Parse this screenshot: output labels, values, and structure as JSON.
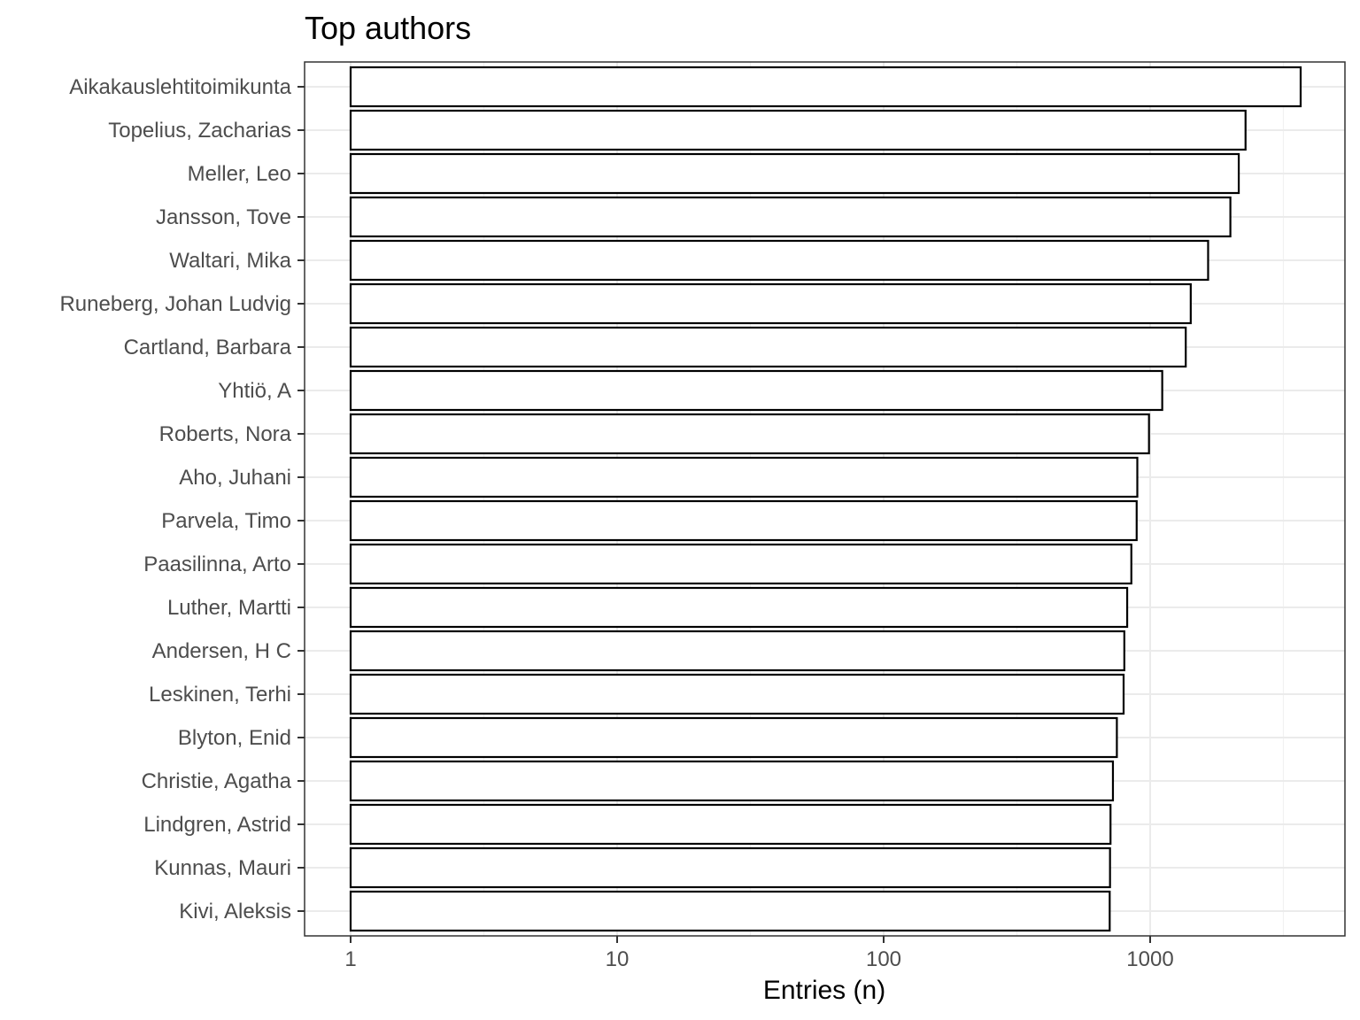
{
  "chart_data": {
    "type": "bar",
    "orientation": "horizontal",
    "title": "Top authors",
    "xlabel": "Entries (n)",
    "ylabel": "",
    "x_scale": "log10",
    "xlim": [
      0.75,
      6000
    ],
    "x_ticks": [
      1,
      10,
      100,
      1000
    ],
    "x_tick_labels": [
      "1",
      "10",
      "100",
      "1000"
    ],
    "grid": true,
    "bar_fill": "#ffffff",
    "bar_stroke": "#000000",
    "categories": [
      "Aikakauslehtitoimikunta",
      "Topelius, Zacharias",
      "Meller, Leo",
      "Jansson, Tove",
      "Waltari, Mika",
      "Runeberg, Johan Ludvig",
      "Cartland, Barbara",
      "Yhtiö, A",
      "Roberts, Nora",
      "Aho, Juhani",
      "Parvela, Timo",
      "Paasilinna, Arto",
      "Luther, Martti",
      "Andersen, H C",
      "Leskinen, Terhi",
      "Blyton, Enid",
      "Christie, Agatha",
      "Lindgren, Astrid",
      "Kunnas, Mauri",
      "Kivi, Aleksis"
    ],
    "values": [
      3670,
      2280,
      2150,
      2000,
      1650,
      1420,
      1360,
      1110,
      990,
      895,
      890,
      850,
      820,
      800,
      795,
      750,
      725,
      710,
      707,
      705
    ]
  }
}
